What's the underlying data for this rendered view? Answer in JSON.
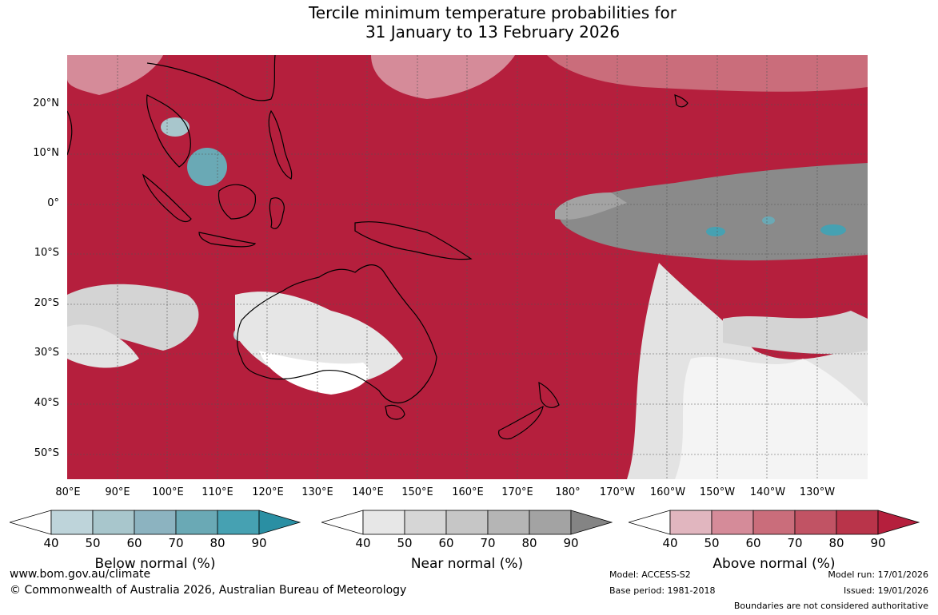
{
  "title": {
    "line1": "Tercile minimum temperature probabilities for",
    "line2": "31 January to 13 February 2026"
  },
  "map": {
    "lat_labels": [
      "20°N",
      "10°N",
      "0°",
      "10°S",
      "20°S",
      "30°S",
      "40°S",
      "50°S"
    ],
    "lon_labels": [
      "80°E",
      "90°E",
      "100°E",
      "110°E",
      "120°E",
      "130°E",
      "140°E",
      "150°E",
      "160°E",
      "170°E",
      "180°",
      "170°W",
      "160°W",
      "150°W",
      "140°W",
      "130°W"
    ],
    "background_color": "#b51f3d",
    "grid": true
  },
  "colorbars": [
    {
      "id": "below",
      "title": "Below normal (%)",
      "ticks": [
        "40",
        "50",
        "60",
        "70",
        "80",
        "90"
      ],
      "colors": [
        "#ffffff",
        "#bed4da",
        "#a8c6cc",
        "#8cb3c0",
        "#6aa9b5",
        "#46a1b2",
        "#2a8fa3"
      ]
    },
    {
      "id": "near",
      "title": "Near normal (%)",
      "ticks": [
        "40",
        "50",
        "60",
        "70",
        "80",
        "90"
      ],
      "colors": [
        "#ffffff",
        "#e7e7e7",
        "#d6d6d6",
        "#c6c6c6",
        "#b5b5b5",
        "#a3a3a3",
        "#848484"
      ]
    },
    {
      "id": "above",
      "title": "Above normal (%)",
      "ticks": [
        "40",
        "50",
        "60",
        "70",
        "80",
        "90"
      ],
      "colors": [
        "#ffffff",
        "#e1b6bf",
        "#d58b99",
        "#ca6d7b",
        "#c15364",
        "#b9344a",
        "#b51f3d"
      ]
    }
  ],
  "footer": {
    "website": "www.bom.gov.au/climate",
    "copyright": "© Commonwealth of Australia 2026, Australian Bureau of Meteorology",
    "model": "Model: ACCESS-S2",
    "base_period": "Base period: 1981-2018",
    "model_run": "Model run: 17/01/2026",
    "issued": "Issued: 19/01/2026",
    "disclaimer": "Boundaries are not considered authoritative"
  }
}
